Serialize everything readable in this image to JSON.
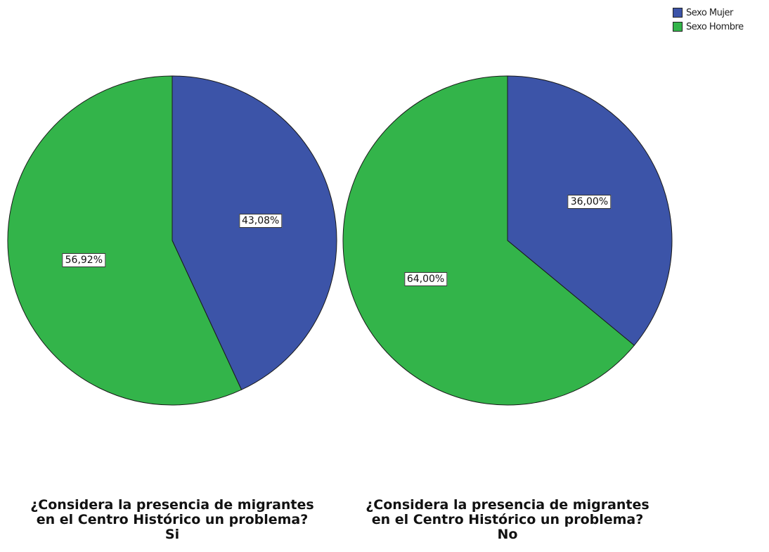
{
  "legend": {
    "items": [
      {
        "label": "Sexo Mujer",
        "color": "#3c54a8"
      },
      {
        "label": "Sexo Hombre",
        "color": "#33b44a"
      }
    ]
  },
  "chart_data": [
    {
      "type": "pie",
      "caption": [
        "¿Considera la presencia de migrantes",
        "en el Centro Histórico un problema?",
        "Si"
      ],
      "slices": [
        {
          "name": "Sexo Mujer",
          "value": 43.08,
          "label": "43,08%",
          "color": "#3c54a8"
        },
        {
          "name": "Sexo Hombre",
          "value": 56.92,
          "label": "56,92%",
          "color": "#33b44a"
        }
      ]
    },
    {
      "type": "pie",
      "caption": [
        "¿Considera la presencia de migrantes",
        "en el Centro Histórico un problema?",
        "No"
      ],
      "slices": [
        {
          "name": "Sexo Mujer",
          "value": 36.0,
          "label": "36,00%",
          "color": "#3c54a8"
        },
        {
          "name": "Sexo Hombre",
          "value": 64.0,
          "label": "64,00%",
          "color": "#33b44a"
        }
      ]
    }
  ]
}
